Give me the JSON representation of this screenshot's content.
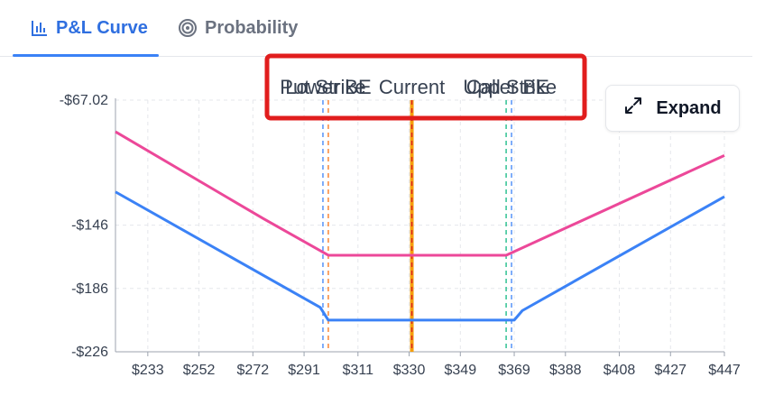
{
  "tabs": [
    {
      "label": "P&L Curve",
      "icon": "bar-chart-icon",
      "active": true
    },
    {
      "label": "Probability",
      "icon": "target-icon",
      "active": false
    }
  ],
  "expand": {
    "label": "Expand",
    "icon": "expand-arrows-icon"
  },
  "chart_data": {
    "type": "line",
    "y_ticks": [
      "-$67.02",
      "-$146",
      "-$186",
      "-$226"
    ],
    "y_tick_values": [
      -67.02,
      -146,
      -186,
      -226
    ],
    "ylim": [
      -226,
      -67.02
    ],
    "x_ticks": [
      "$233",
      "$252",
      "$272",
      "$291",
      "$311",
      "$330",
      "$349",
      "$369",
      "$388",
      "$408",
      "$427",
      "$447"
    ],
    "x_tick_values": [
      233,
      252,
      272,
      291,
      311,
      330,
      349,
      369,
      388,
      408,
      427,
      447
    ],
    "xlim": [
      221,
      447
    ],
    "grid": true,
    "series": [
      {
        "color": "#ec4899",
        "x": [
          221,
          276,
          300,
          366,
          447
        ],
        "y": [
          -87,
          -142,
          -165,
          -165,
          -102
        ]
      },
      {
        "color": "#3b82f6",
        "x": [
          221,
          297,
          300,
          369,
          372,
          447
        ],
        "y": [
          -125,
          -198,
          -206,
          -206,
          -200,
          -128
        ]
      }
    ],
    "reference_lines": [
      {
        "label": "Put Strike",
        "x": 298,
        "color": "#3b82f6",
        "style": "dashed"
      },
      {
        "label": "Lower BE",
        "x": 300,
        "color": "#f97316",
        "style": "dashed"
      },
      {
        "label": "Current",
        "x": 331,
        "color": "#f59e0b",
        "style": "solid"
      },
      {
        "label": "Upper BE",
        "x": 366,
        "color": "#10b981",
        "style": "dashed"
      },
      {
        "label": "Call Strike",
        "x": 368,
        "color": "#3b82f6",
        "style": "dashed"
      }
    ],
    "highlight_color": "#e11d1d"
  }
}
